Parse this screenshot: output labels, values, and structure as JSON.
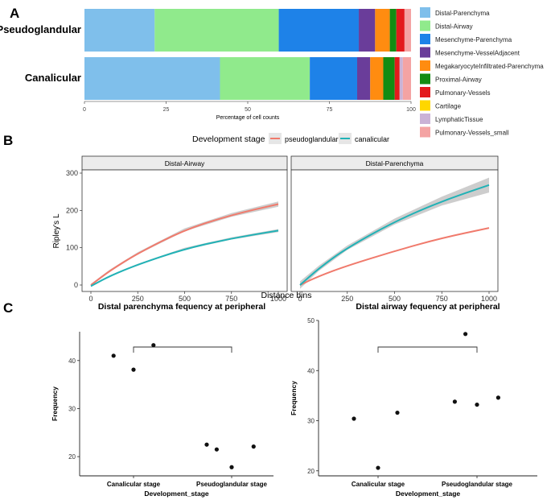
{
  "panel_labels": [
    "A",
    "B",
    "C"
  ],
  "colors": {
    "pseudoglandular": "#f07a6c",
    "canalicular": "#21b2b6",
    "ribbon": "#c8c8c8",
    "strip": "#ececec"
  },
  "chart_data": [
    {
      "type": "bar",
      "stacked": "horizontal",
      "categories": [
        "Pseudoglandular",
        "Canalicular"
      ],
      "xlabel": "Percentage of cell counts",
      "xlim": [
        0,
        100
      ],
      "xticks": [
        "0",
        "25",
        "50",
        "75",
        "100"
      ],
      "series": [
        {
          "name": "Distal-Parenchyma",
          "color": "#7fbfeb",
          "values": [
            21.5,
            41.5
          ]
        },
        {
          "name": "Distal-Airway",
          "color": "#90ea8c",
          "values": [
            38,
            27.5
          ]
        },
        {
          "name": "Mesenchyme-Parenchyma",
          "color": "#1e82e8",
          "values": [
            24.5,
            14.5
          ]
        },
        {
          "name": "Mesenchyme-VesselAdjacent",
          "color": "#6a3d9a",
          "values": [
            5,
            4
          ]
        },
        {
          "name": "MegakaryocyteInfiltrated-Parenchyma",
          "color": "#ff8c10",
          "values": [
            4.5,
            4
          ]
        },
        {
          "name": "Proximal-Airway",
          "color": "#138c13",
          "values": [
            2,
            3.5
          ]
        },
        {
          "name": "Pulmonary-Vessels",
          "color": "#e31a1c",
          "values": [
            2.5,
            1.5
          ]
        },
        {
          "name": "Cartilage",
          "color": "#ffd700",
          "values": [
            0,
            0
          ]
        },
        {
          "name": "LymphaticTissue",
          "color": "#cab2d6",
          "values": [
            0,
            1
          ]
        },
        {
          "name": "Pulmonary-Vessels_small",
          "color": "#f4a3a3",
          "values": [
            2,
            2.5
          ]
        }
      ]
    },
    {
      "type": "line",
      "legend_title": "Development stage",
      "legend": [
        "pseudoglandular",
        "canalicular"
      ],
      "xlabel": "Distance bins",
      "ylabel": "Ripley's L",
      "xlim": [
        0,
        1000
      ],
      "ylim": [
        0,
        300
      ],
      "xticks": [
        "0",
        "250",
        "500",
        "750",
        "1000"
      ],
      "yticks": [
        "0",
        "100",
        "200",
        "300"
      ],
      "facets": [
        {
          "title": "Distal-Airway",
          "series": [
            {
              "name": "pseudoglandular",
              "x": [
                0,
                100,
                250,
                500,
                750,
                1000
              ],
              "y": [
                0,
                38,
                85,
                148,
                188,
                217
              ],
              "band": [
                3,
                3,
                3,
                4,
                5,
                7
              ]
            },
            {
              "name": "canalicular",
              "x": [
                0,
                100,
                250,
                500,
                750,
                1000
              ],
              "y": [
                -3,
                24,
                55,
                97,
                125,
                146
              ],
              "band": [
                2,
                2,
                2,
                3,
                3,
                4
              ]
            }
          ]
        },
        {
          "title": "Distal-Parenchyma",
          "series": [
            {
              "name": "pseudoglandular",
              "x": [
                0,
                100,
                250,
                500,
                750,
                1000
              ],
              "y": [
                0,
                24,
                52,
                91,
                126,
                153
              ],
              "band": [
                1,
                1,
                1,
                1,
                1,
                1
              ]
            },
            {
              "name": "canalicular",
              "x": [
                0,
                100,
                250,
                500,
                750,
                1000
              ],
              "y": [
                0,
                45,
                100,
                170,
                225,
                268
              ],
              "band": [
                10,
                7,
                6,
                8,
                12,
                20
              ]
            }
          ]
        }
      ]
    },
    {
      "type": "scatter",
      "title": "Distal parenchyma fequency at peripheral",
      "xlabel": "Development_stage",
      "ylabel": "Frequency",
      "categories": [
        "Canalicular stage",
        "Pseudoglandular stage"
      ],
      "ylim": [
        16,
        46
      ],
      "yticks": [
        20,
        30,
        40
      ],
      "points": [
        {
          "x": "Canalicular stage",
          "offset": -0.2,
          "y": 41
        },
        {
          "x": "Canalicular stage",
          "offset": 0.0,
          "y": 38.1
        },
        {
          "x": "Canalicular stage",
          "offset": 0.2,
          "y": 43.2
        },
        {
          "x": "Pseudoglandular stage",
          "offset": -0.25,
          "y": 22.5
        },
        {
          "x": "Pseudoglandular stage",
          "offset": -0.15,
          "y": 21.5
        },
        {
          "x": "Pseudoglandular stage",
          "offset": 0.0,
          "y": 17.8
        },
        {
          "x": "Pseudoglandular stage",
          "offset": 0.22,
          "y": 22.1
        }
      ],
      "bracket": [
        "Canalicular stage",
        "Pseudoglandular stage"
      ]
    },
    {
      "type": "scatter",
      "title": "Distal airway fequency at peripheral",
      "xlabel": "Development_stage",
      "ylabel": "Frequency",
      "categories": [
        "Canalicular stage",
        "Pseudoglandular stage"
      ],
      "ylim": [
        19,
        50
      ],
      "yticks": [
        20,
        30,
        40,
        50
      ],
      "points": [
        {
          "x": "Canalicular stage",
          "offset": -0.25,
          "y": 30.4
        },
        {
          "x": "Canalicular stage",
          "offset": 0.0,
          "y": 20.6
        },
        {
          "x": "Canalicular stage",
          "offset": 0.2,
          "y": 31.6
        },
        {
          "x": "Pseudoglandular stage",
          "offset": -0.23,
          "y": 33.8
        },
        {
          "x": "Pseudoglandular stage",
          "offset": -0.12,
          "y": 47.3
        },
        {
          "x": "Pseudoglandular stage",
          "offset": 0.0,
          "y": 33.2
        },
        {
          "x": "Pseudoglandular stage",
          "offset": 0.22,
          "y": 34.6
        }
      ],
      "bracket": [
        "Canalicular stage",
        "Pseudoglandular stage"
      ]
    }
  ]
}
